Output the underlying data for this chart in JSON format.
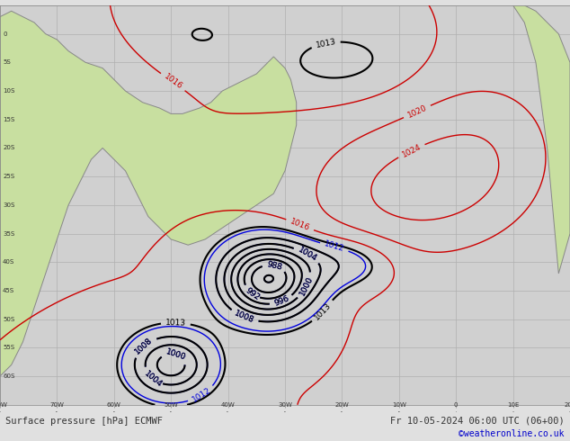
{
  "title_left": "Surface pressure [hPa] ECMWF",
  "title_right": "Fr 10-05-2024 06:00 UTC (06+00)",
  "copyright": "©weatheronline.co.uk",
  "background_ocean": "#d0d0d0",
  "background_land": "#c8dfa0",
  "grid_color": "#b0b0b0",
  "border_color": "#888888",
  "text_color_left": "#333333",
  "text_color_right": "#333333",
  "copyright_color": "#0000cc",
  "bottom_bar_color": "#e0e0e0",
  "fig_width": 6.34,
  "fig_height": 4.9,
  "dpi": 100
}
